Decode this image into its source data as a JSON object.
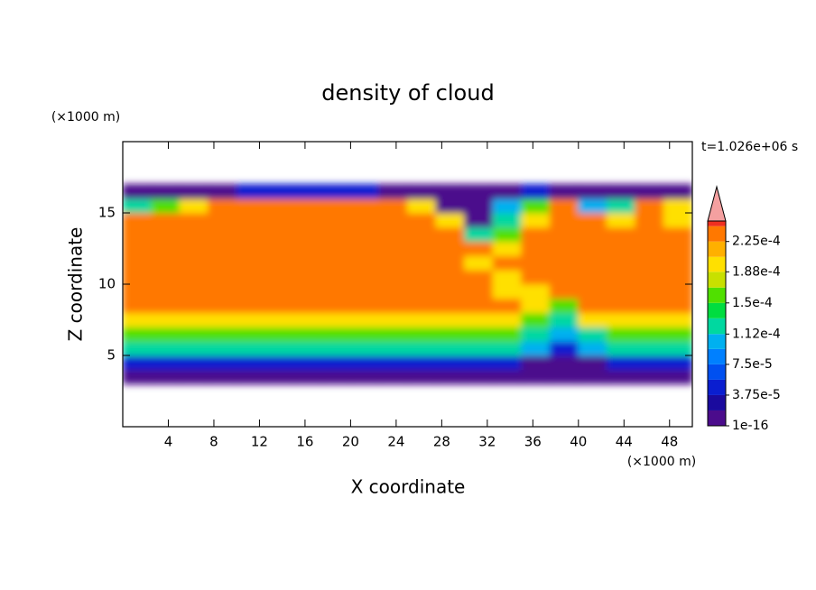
{
  "chart_data": {
    "type": "contour",
    "title": "density of cloud",
    "annotation": "t=1.026e+06 s",
    "x_label": "X coordinate",
    "y_label": "Z coordinate",
    "x_unit": "(×1000 m)",
    "y_unit": "(×1000 m)",
    "xlim": [
      0,
      50
    ],
    "ylim": [
      0,
      20
    ],
    "xticks": [
      4,
      8,
      12,
      16,
      20,
      24,
      28,
      32,
      36,
      40,
      44,
      48
    ],
    "yticks": [
      5,
      10,
      15
    ],
    "x": [
      1.25,
      3.75,
      6.25,
      8.75,
      11.25,
      13.75,
      16.25,
      18.75,
      21.25,
      23.75,
      26.25,
      28.75,
      31.25,
      33.75,
      36.25,
      38.75,
      41.25,
      43.75,
      46.25,
      48.75
    ],
    "y": [
      3.5,
      4.5,
      5.5,
      6.5,
      7.5,
      8.5,
      9.5,
      10.5,
      11.5,
      12.5,
      13.5,
      14.5,
      15.5,
      16.5
    ],
    "z": [
      [
        1e-05,
        1e-05,
        1e-05,
        1e-05,
        1e-05,
        1e-05,
        1e-05,
        1e-05,
        1e-05,
        1e-05,
        1e-05,
        1e-05,
        1e-05,
        1e-05,
        1e-05,
        1e-05,
        1e-05,
        1e-05,
        1e-05,
        1e-05
      ],
      [
        5e-05,
        5e-05,
        5e-05,
        5e-05,
        5e-05,
        5e-05,
        5e-05,
        5e-05,
        5e-05,
        5e-05,
        5e-05,
        5e-05,
        5e-05,
        5e-05,
        1e-05,
        1e-05,
        1e-05,
        5e-05,
        5e-05,
        5e-05
      ],
      [
        0.00013,
        0.00013,
        0.00013,
        0.00013,
        0.00013,
        0.00013,
        0.00013,
        0.00013,
        0.00013,
        0.00013,
        0.00013,
        0.00013,
        0.00013,
        0.00013,
        0.0001,
        5e-05,
        0.0001,
        0.00013,
        0.00013,
        0.00013
      ],
      [
        0.00016,
        0.00016,
        0.00016,
        0.00016,
        0.00016,
        0.00016,
        0.00016,
        0.00016,
        0.00016,
        0.00016,
        0.00016,
        0.00016,
        0.00016,
        0.00016,
        0.00013,
        0.0001,
        0.00013,
        0.00016,
        0.00016,
        0.00016
      ],
      [
        0.0002,
        0.0002,
        0.0002,
        0.0002,
        0.0002,
        0.0002,
        0.0002,
        0.0002,
        0.0002,
        0.0002,
        0.0002,
        0.0002,
        0.0002,
        0.0002,
        0.00016,
        0.00013,
        0.0002,
        0.0002,
        0.0002,
        0.0002
      ],
      [
        0.000235,
        0.000235,
        0.000235,
        0.000235,
        0.000235,
        0.000235,
        0.000235,
        0.000235,
        0.000235,
        0.000235,
        0.000235,
        0.000235,
        0.000235,
        0.000235,
        0.0002,
        0.00016,
        0.000235,
        0.000235,
        0.000235,
        0.000235
      ],
      [
        0.000235,
        0.000235,
        0.000235,
        0.000235,
        0.000235,
        0.000235,
        0.000235,
        0.000235,
        0.000235,
        0.000235,
        0.000235,
        0.000235,
        0.000235,
        0.0002,
        0.0002,
        0.000235,
        0.000235,
        0.000235,
        0.000235,
        0.000235
      ],
      [
        0.000235,
        0.000235,
        0.000235,
        0.000235,
        0.000235,
        0.000235,
        0.000235,
        0.000235,
        0.000235,
        0.000235,
        0.000235,
        0.000235,
        0.000235,
        0.0002,
        0.000235,
        0.000235,
        0.000235,
        0.000235,
        0.000235,
        0.000235
      ],
      [
        0.000235,
        0.000235,
        0.000235,
        0.000235,
        0.000235,
        0.000235,
        0.000235,
        0.000235,
        0.000235,
        0.000235,
        0.000235,
        0.000235,
        0.0002,
        0.000235,
        0.000235,
        0.000235,
        0.000235,
        0.000235,
        0.000235,
        0.000235
      ],
      [
        0.000235,
        0.000235,
        0.000235,
        0.000235,
        0.000235,
        0.000235,
        0.000235,
        0.000235,
        0.000235,
        0.000235,
        0.000235,
        0.000235,
        0.000235,
        0.0002,
        0.000235,
        0.000235,
        0.000235,
        0.000235,
        0.000235,
        0.000235
      ],
      [
        0.000235,
        0.000235,
        0.000235,
        0.000235,
        0.000235,
        0.000235,
        0.000235,
        0.000235,
        0.000235,
        0.000235,
        0.000235,
        0.000235,
        0.00013,
        0.00016,
        0.000235,
        0.000235,
        0.000235,
        0.000235,
        0.000235,
        0.000235
      ],
      [
        0.000235,
        0.000235,
        0.000235,
        0.000235,
        0.000235,
        0.000235,
        0.000235,
        0.000235,
        0.000235,
        0.000235,
        0.000235,
        0.0002,
        1e-05,
        0.00013,
        0.0002,
        0.000235,
        0.000235,
        0.0002,
        0.000235,
        0.0002
      ],
      [
        0.00013,
        0.00016,
        0.0002,
        0.000235,
        0.000235,
        0.000235,
        0.000235,
        0.000235,
        0.000235,
        0.000235,
        0.0002,
        1e-05,
        1e-05,
        0.0001,
        0.00016,
        0.000235,
        0.0001,
        0.00013,
        0.000235,
        0.0002
      ],
      [
        1e-05,
        1e-05,
        1e-05,
        1e-05,
        5e-05,
        5e-05,
        5e-05,
        5e-05,
        5e-05,
        1e-05,
        1e-05,
        1e-05,
        1e-05,
        1e-05,
        5e-05,
        1e-05,
        1e-05,
        1e-05,
        1e-05,
        1e-05
      ]
    ],
    "colorbar": {
      "clim": [
        1e-16,
        0.00025
      ],
      "levels": [
        1e-16,
        1.875e-05,
        3.75e-05,
        5.625e-05,
        7.5e-05,
        9.375e-05,
        0.000112,
        0.00013125,
        0.00015,
        0.00016875,
        0.000188,
        0.00020625,
        0.000225,
        0.00024375
      ],
      "colors": [
        "#4b0c8c",
        "#1a0a9e",
        "#0a1ed0",
        "#0050f0",
        "#0080ff",
        "#00b0f0",
        "#00d8a0",
        "#00dd40",
        "#50e000",
        "#c8e000",
        "#ffe000",
        "#ffb000",
        "#ff7800",
        "#f03020"
      ],
      "over_color": "#f4a0a0",
      "ticks": [
        {
          "value": 1e-16,
          "label": "1e-16"
        },
        {
          "value": 3.75e-05,
          "label": "3.75e-5"
        },
        {
          "value": 7.5e-05,
          "label": "7.5e-5"
        },
        {
          "value": 0.000112,
          "label": "1.12e-4"
        },
        {
          "value": 0.00015,
          "label": "1.5e-4"
        },
        {
          "value": 0.000188,
          "label": "1.88e-4"
        },
        {
          "value": 0.000225,
          "label": "2.25e-4"
        }
      ]
    }
  }
}
